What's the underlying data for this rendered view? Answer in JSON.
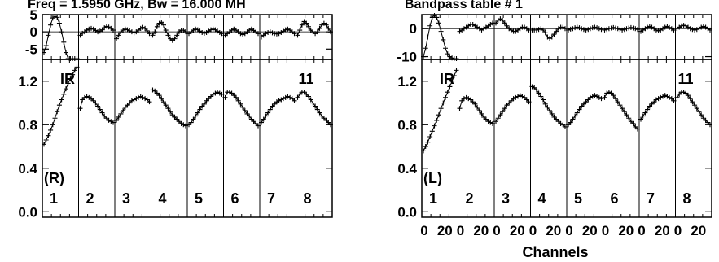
{
  "header": {
    "left": "Freq = 1.5950 GHz, Bw = 16.000 MH",
    "right": "Bandpass table # 1"
  },
  "xlabel": "Channels",
  "annotations": {
    "ir": "IR",
    "antenna": "11"
  },
  "chart_data": [
    {
      "type": "line",
      "panel": "phase",
      "polarization": "R",
      "ylim": [
        -8,
        5
      ],
      "yticks": [
        "5",
        "0",
        "-5"
      ],
      "xlim": [
        0,
        32
      ],
      "subbands": [
        "1",
        "2",
        "3",
        "4",
        "5",
        "6",
        "7",
        "8"
      ],
      "series": [
        {
          "values": [
            -6,
            -4,
            -1,
            2,
            4,
            4.5,
            4.2,
            2.5,
            0,
            -3,
            -6,
            -8,
            -9,
            -9.5,
            -10,
            -10.5
          ]
        },
        {
          "values": [
            -1,
            -0.4,
            0,
            0.5,
            0.8,
            1,
            0.8,
            0.4,
            0,
            0.2,
            0.6,
            1.2,
            1.6,
            1.4,
            1,
            0.5
          ]
        },
        {
          "values": [
            -2,
            -1,
            0,
            0.5,
            0.8,
            0.6,
            0.3,
            0,
            -0.3,
            0,
            0.5,
            1,
            1.3,
            1,
            0.3,
            -0.5
          ]
        },
        {
          "values": [
            -1,
            0,
            1.5,
            2.5,
            2.8,
            2,
            0.5,
            -1,
            -2,
            -2.5,
            -2,
            -1,
            0,
            0.5,
            0.5,
            0
          ]
        },
        {
          "values": [
            -0.5,
            0,
            0.5,
            0.8,
            0.6,
            0.2,
            -0.2,
            -0.4,
            -0.2,
            0.2,
            0.6,
            0.8,
            0.6,
            0.2,
            -0.2,
            -0.5
          ]
        },
        {
          "values": [
            -1,
            -0.5,
            0,
            0.5,
            0.8,
            0.5,
            0,
            -0.5,
            -0.8,
            -0.5,
            0,
            0.5,
            0.8,
            0.4,
            0,
            -0.5
          ]
        },
        {
          "values": [
            -1.5,
            -1,
            -0.5,
            -0.2,
            0,
            -0.3,
            -0.5,
            -0.6,
            -0.5,
            -0.2,
            0.2,
            0.6,
            0.8,
            0.5,
            0,
            -0.5
          ]
        },
        {
          "values": [
            -1,
            0.5,
            2,
            3,
            2.5,
            1.5,
            0.5,
            0,
            -0.5,
            0,
            1,
            2,
            2.5,
            2,
            1,
            0
          ]
        }
      ]
    },
    {
      "type": "line",
      "panel": "amplitude",
      "polarization": "R",
      "ylim": [
        -0.05,
        1.4
      ],
      "yticks": [
        "1.2",
        "0.8",
        "0.4",
        "0.0"
      ],
      "xlim": [
        0,
        32
      ],
      "subbands": [
        "1",
        "2",
        "3",
        "4",
        "5",
        "6",
        "7",
        "8"
      ],
      "series": [
        {
          "values": [
            0.62,
            0.66,
            0.7,
            0.75,
            0.8,
            0.86,
            0.92,
            0.98,
            1.03,
            1.08,
            1.13,
            1.18,
            1.22,
            1.26,
            1.3,
            1.33
          ]
        },
        {
          "values": [
            0.95,
            1.03,
            1.05,
            1.06,
            1.05,
            1.04,
            1.02,
            1.0,
            0.97,
            0.94,
            0.91,
            0.88,
            0.86,
            0.84,
            0.83,
            0.82
          ]
        },
        {
          "values": [
            0.84,
            0.87,
            0.9,
            0.93,
            0.96,
            0.98,
            1.0,
            1.02,
            1.03,
            1.04,
            1.05,
            1.06,
            1.05,
            1.04,
            1.03,
            1.01
          ]
        },
        {
          "values": [
            1.12,
            1.11,
            1.09,
            1.07,
            1.04,
            1.01,
            0.98,
            0.95,
            0.92,
            0.89,
            0.87,
            0.85,
            0.83,
            0.81,
            0.8,
            0.79
          ]
        },
        {
          "values": [
            0.8,
            0.82,
            0.85,
            0.88,
            0.91,
            0.94,
            0.97,
            0.99,
            1.02,
            1.04,
            1.06,
            1.08,
            1.09,
            1.1,
            1.09,
            1.08
          ]
        },
        {
          "values": [
            1.05,
            1.1,
            1.1,
            1.09,
            1.07,
            1.05,
            1.02,
            0.99,
            0.96,
            0.93,
            0.9,
            0.88,
            0.85,
            0.83,
            0.81,
            0.79
          ]
        },
        {
          "values": [
            0.82,
            0.85,
            0.88,
            0.91,
            0.94,
            0.97,
            0.99,
            1.01,
            1.02,
            1.03,
            1.04,
            1.05,
            1.06,
            1.05,
            1.04,
            1.02
          ]
        },
        {
          "values": [
            1.05,
            1.08,
            1.1,
            1.1,
            1.08,
            1.06,
            1.03,
            1.0,
            0.97,
            0.94,
            0.91,
            0.88,
            0.86,
            0.84,
            0.82,
            0.8
          ]
        }
      ]
    },
    {
      "type": "line",
      "panel": "phase",
      "polarization": "L",
      "ylim": [
        -11,
        5
      ],
      "yticks": [
        "0",
        "-10"
      ],
      "xlim": [
        0,
        32
      ],
      "subbands": [
        "1",
        "2",
        "3",
        "4",
        "5",
        "6",
        "7",
        "8"
      ],
      "series": [
        {
          "values": [
            -10,
            -7,
            -3,
            1,
            4,
            5,
            4,
            2,
            -1,
            -4,
            -7,
            -9,
            -10,
            -10.5,
            -11,
            -11
          ]
        },
        {
          "values": [
            -1,
            -0.5,
            0,
            0.5,
            1,
            1.5,
            1.5,
            1,
            0.5,
            0,
            -0.5,
            0,
            0.5,
            1,
            1.5,
            2
          ]
        },
        {
          "values": [
            2,
            3,
            3.5,
            3,
            2,
            1,
            0,
            -0.5,
            -1,
            -1,
            -0.5,
            0,
            0.5,
            0.5,
            0,
            -0.5
          ]
        },
        {
          "values": [
            -0.5,
            -0.5,
            -0.5,
            -0.3,
            0,
            -0.5,
            -1.5,
            -3,
            -3.5,
            -3,
            -2,
            -1,
            0,
            0.5,
            0.5,
            0
          ]
        },
        {
          "values": [
            -0.5,
            -0.2,
            0,
            0.3,
            0.5,
            0.3,
            0,
            -0.3,
            -0.5,
            -0.3,
            0,
            0.3,
            0.5,
            0.3,
            0,
            -0.3
          ]
        },
        {
          "values": [
            -0.5,
            -0.3,
            0,
            0.2,
            0.4,
            0.2,
            0,
            -0.3,
            -0.5,
            -0.3,
            0,
            0.2,
            0.4,
            0.2,
            0,
            -0.3
          ]
        },
        {
          "values": [
            -1,
            -0.5,
            0,
            0.5,
            0.8,
            0.5,
            0,
            -0.5,
            -0.8,
            -0.5,
            0,
            0.5,
            0.8,
            0.4,
            0,
            -0.5
          ]
        },
        {
          "values": [
            0,
            0.5,
            1,
            1.2,
            1,
            0.5,
            0,
            -0.3,
            -0.5,
            -0.3,
            0,
            0.5,
            0.8,
            0.5,
            0,
            -0.5
          ]
        }
      ]
    },
    {
      "type": "line",
      "panel": "amplitude",
      "polarization": "L",
      "ylim": [
        -0.05,
        1.4
      ],
      "yticks": [
        "1.2",
        "0.8",
        "0.4",
        "0.0"
      ],
      "xlim": [
        0,
        32
      ],
      "xticks": [
        "0",
        "20"
      ],
      "subbands": [
        "1",
        "2",
        "3",
        "4",
        "5",
        "6",
        "7",
        "8"
      ],
      "series": [
        {
          "values": [
            0.56,
            0.6,
            0.64,
            0.69,
            0.74,
            0.79,
            0.84,
            0.89,
            0.95,
            1.0,
            1.05,
            1.1,
            1.15,
            1.2,
            1.25,
            1.3
          ]
        },
        {
          "values": [
            0.95,
            1.02,
            1.04,
            1.05,
            1.04,
            1.03,
            1.01,
            0.99,
            0.96,
            0.93,
            0.9,
            0.87,
            0.85,
            0.83,
            0.82,
            0.81
          ]
        },
        {
          "values": [
            0.83,
            0.86,
            0.89,
            0.92,
            0.95,
            0.98,
            1.0,
            1.02,
            1.04,
            1.05,
            1.06,
            1.07,
            1.06,
            1.05,
            1.03,
            1.01
          ]
        },
        {
          "values": [
            1.15,
            1.14,
            1.12,
            1.09,
            1.06,
            1.03,
            0.99,
            0.96,
            0.93,
            0.9,
            0.87,
            0.85,
            0.83,
            0.81,
            0.8,
            0.78
          ]
        },
        {
          "values": [
            0.8,
            0.82,
            0.85,
            0.88,
            0.91,
            0.94,
            0.97,
            0.99,
            1.01,
            1.03,
            1.05,
            1.06,
            1.07,
            1.06,
            1.05,
            1.04
          ]
        },
        {
          "values": [
            1.05,
            1.09,
            1.1,
            1.09,
            1.07,
            1.04,
            1.01,
            0.98,
            0.95,
            0.92,
            0.89,
            0.86,
            0.83,
            0.81,
            0.78,
            0.76
          ]
        },
        {
          "values": [
            0.85,
            0.88,
            0.91,
            0.94,
            0.97,
            0.99,
            1.01,
            1.03,
            1.04,
            1.05,
            1.06,
            1.07,
            1.06,
            1.05,
            1.04,
            1.02
          ]
        },
        {
          "values": [
            1.05,
            1.08,
            1.1,
            1.1,
            1.09,
            1.07,
            1.04,
            1.01,
            0.98,
            0.95,
            0.92,
            0.89,
            0.86,
            0.84,
            0.82,
            0.8
          ]
        }
      ]
    }
  ]
}
